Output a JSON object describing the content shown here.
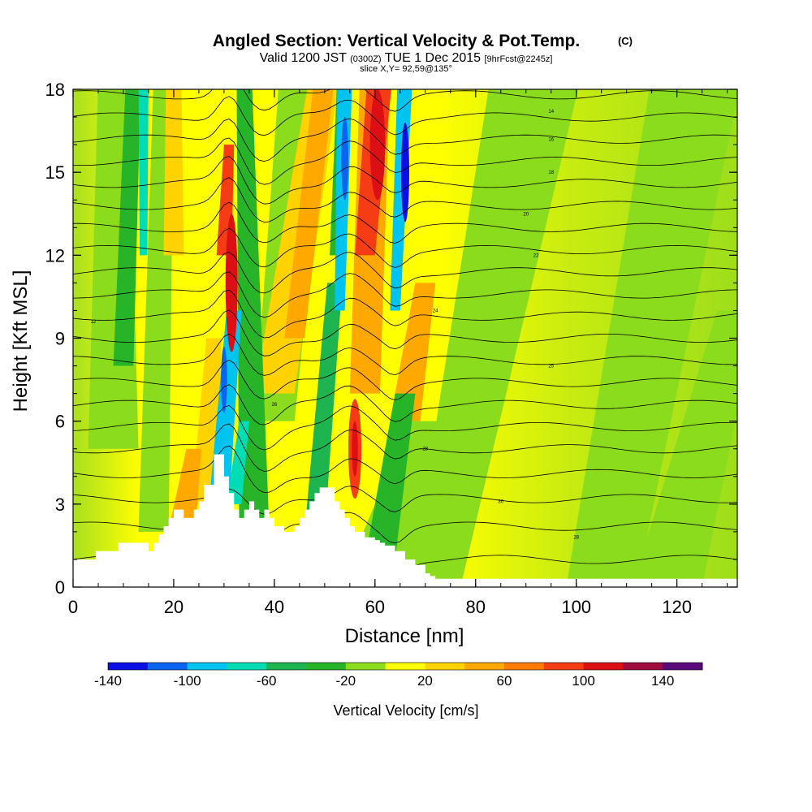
{
  "chart_data": {
    "type": "heatmap",
    "title": {
      "main": "Angled Section: Vertical Velocity & Pot.Temp.",
      "unit_tag": "(C)",
      "line2_a": "Valid 1200 JST",
      "line2_b": "(0300Z)",
      "line2_c": "TUE 1 Dec 2015",
      "line2_d": "[9hrFcst@2245z]",
      "line3": "slice X,Y= 92,59@135°"
    },
    "xlabel": "Distance [nm]",
    "ylabel": "Height [Kft MSL]",
    "xlim": [
      0,
      132
    ],
    "ylim": [
      0,
      18
    ],
    "x_ticks": [
      0,
      20,
      40,
      60,
      80,
      100,
      120
    ],
    "y_ticks": [
      0,
      3,
      6,
      9,
      12,
      15,
      18
    ],
    "colorbar": {
      "label": "Vertical Velocity [cm/s]",
      "tick_labels": [
        "-140",
        "-100",
        "-60",
        "-20",
        "20",
        "60",
        "100",
        "140"
      ],
      "colors": [
        "#0a10e6",
        "#0a64f0",
        "#00c3f0",
        "#00dcb4",
        "#1eb450",
        "#28b428",
        "#8cdc1e",
        "#ffff00",
        "#ffd200",
        "#ffa800",
        "#ff7a00",
        "#f53c14",
        "#dc0f14",
        "#a00a3c",
        "#5a0a7a"
      ]
    },
    "updraft_cores": [
      {
        "x": 31.5,
        "z": 11,
        "w": 120
      },
      {
        "x": 56,
        "z": 5,
        "w": 110
      },
      {
        "x": 60.5,
        "z": 16,
        "w": 100
      }
    ],
    "downdraft_cores": [
      {
        "x": 30,
        "z": 7.5,
        "w": -140
      },
      {
        "x": 54,
        "z": 15.5,
        "w": -100
      },
      {
        "x": 66,
        "z": 15,
        "w": -130
      }
    ],
    "terrain_profile": {
      "x": [
        0,
        4.5,
        9,
        13,
        15,
        16,
        17,
        18,
        19,
        20,
        21,
        22,
        24,
        25,
        26,
        28,
        29,
        30,
        31,
        32,
        33,
        34,
        35,
        36,
        37,
        38,
        39,
        40,
        42,
        43,
        44,
        45,
        46,
        47,
        48,
        49,
        50,
        51,
        52,
        53,
        54,
        55,
        56,
        58,
        60,
        61,
        62,
        64,
        66,
        68,
        70,
        71,
        72,
        132
      ],
      "z": [
        1.0,
        1.3,
        1.6,
        1.6,
        1.3,
        1.6,
        1.9,
        2.2,
        2.5,
        2.8,
        2.8,
        2.5,
        2.8,
        3.1,
        3.7,
        4.8,
        4.8,
        4.0,
        3.4,
        2.8,
        2.5,
        2.8,
        3.1,
        2.8,
        2.5,
        2.8,
        2.5,
        2.2,
        2.0,
        2.0,
        2.2,
        2.5,
        2.8,
        3.1,
        3.4,
        3.6,
        3.6,
        3.6,
        3.1,
        2.8,
        2.5,
        2.2,
        2.0,
        1.8,
        1.7,
        1.6,
        1.5,
        1.3,
        1.0,
        0.8,
        0.5,
        0.4,
        0.3,
        0.3
      ]
    },
    "theta_labels": [
      "28",
      "30",
      "28",
      "26",
      "25",
      "24",
      "22",
      "20",
      "18",
      "16",
      "14",
      "12"
    ]
  }
}
